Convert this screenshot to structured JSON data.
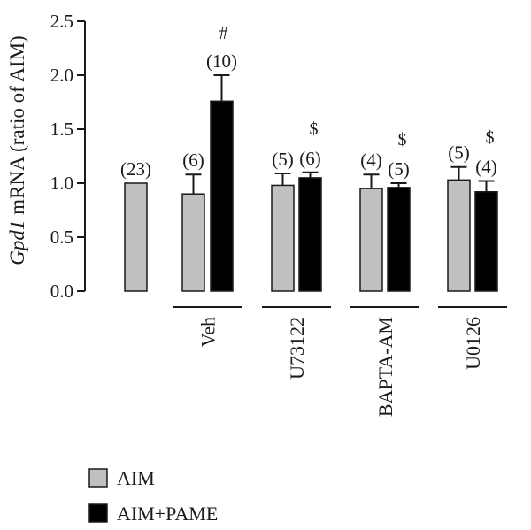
{
  "chart_data": {
    "type": "bar",
    "ylabel_italic": "Gpd1",
    "ylabel_rest": " mRNA (ratio of AIM)",
    "ylim": [
      0,
      2.5
    ],
    "yticks": [
      "0.0",
      "0.5",
      "1.0",
      "1.5",
      "2.0",
      "2.5"
    ],
    "groups": [
      "",
      "Veh",
      "U73122",
      "BAPTA-AM",
      "U0126"
    ],
    "series": [
      {
        "name": "AIM",
        "color": "#c0c0c0"
      },
      {
        "name": "AIM+PAME",
        "color": "#000000"
      }
    ],
    "bars": [
      {
        "group": 0,
        "series": 0,
        "value": 1.0,
        "error": 0.0,
        "n": "(23)",
        "sig": ""
      },
      {
        "group": 1,
        "series": 0,
        "value": 0.9,
        "error": 0.18,
        "n": "(6)",
        "sig": ""
      },
      {
        "group": 1,
        "series": 1,
        "value": 1.76,
        "error": 0.24,
        "n": "(10)",
        "sig": "#"
      },
      {
        "group": 2,
        "series": 0,
        "value": 0.98,
        "error": 0.11,
        "n": "(5)",
        "sig": ""
      },
      {
        "group": 2,
        "series": 1,
        "value": 1.05,
        "error": 0.05,
        "n": "(6)",
        "sig": "$"
      },
      {
        "group": 3,
        "series": 0,
        "value": 0.95,
        "error": 0.13,
        "n": "(4)",
        "sig": ""
      },
      {
        "group": 3,
        "series": 1,
        "value": 0.96,
        "error": 0.04,
        "n": "(5)",
        "sig": "$"
      },
      {
        "group": 4,
        "series": 0,
        "value": 1.03,
        "error": 0.12,
        "n": "(5)",
        "sig": ""
      },
      {
        "group": 4,
        "series": 1,
        "value": 0.92,
        "error": 0.1,
        "n": "(4)",
        "sig": "$"
      }
    ],
    "legend_placement": "bottom-left",
    "grid": false
  }
}
